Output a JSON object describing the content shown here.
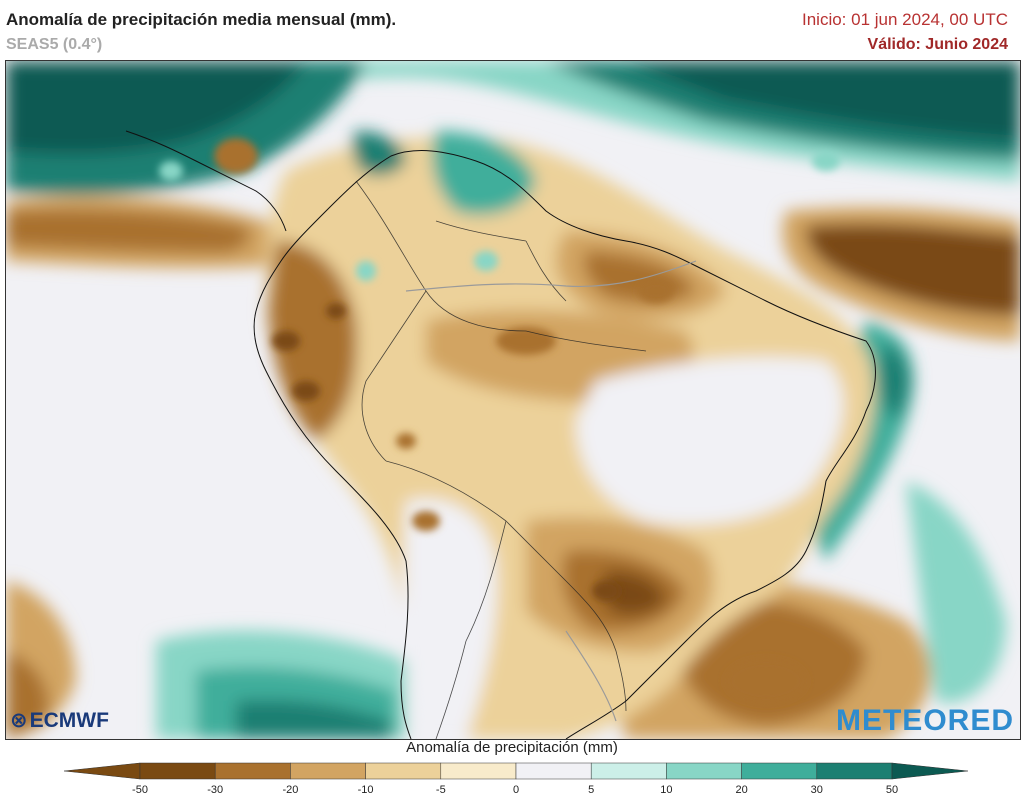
{
  "header": {
    "title": "Anomalía de precipitación media mensual (mm).",
    "subtitle": "SEAS5 (0.4°)",
    "init": "Inicio: 01 jun 2024, 00 UTC",
    "valid": "Válido: Junio 2024"
  },
  "logos": {
    "left": "ECMWF",
    "right": "METEORED"
  },
  "colorbar": {
    "title": "Anomalía de precipitación (mm)",
    "ticks": [
      "-50",
      "-30",
      "-20",
      "-10",
      "-5",
      "0",
      "5",
      "10",
      "20",
      "30",
      "50"
    ],
    "colors": [
      "#7a4a12",
      "#a9712e",
      "#d2a462",
      "#ecd19a",
      "#f8ebcb",
      "#f1f1f5",
      "#ccefe8",
      "#88d6c6",
      "#3fae9b",
      "#1c7f72",
      "#0c5a52"
    ]
  },
  "map": {
    "ocean": "#f1f1f5"
  }
}
